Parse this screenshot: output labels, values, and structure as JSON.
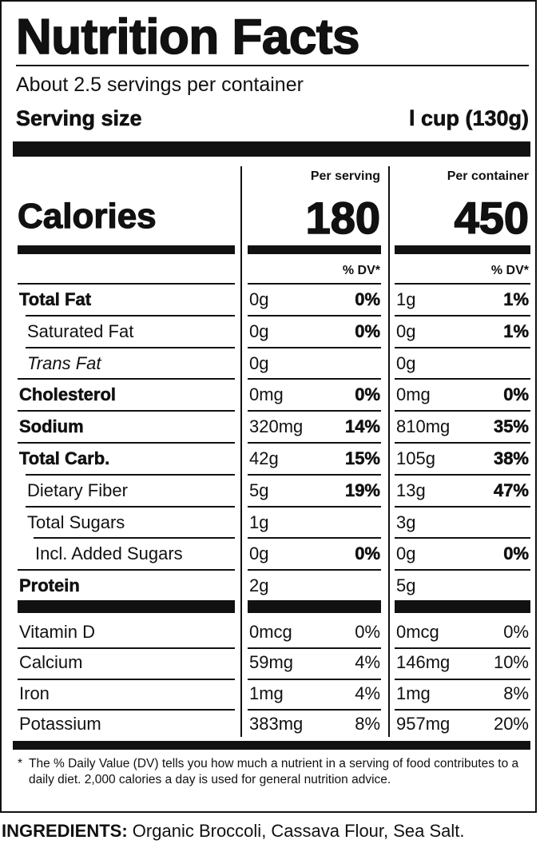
{
  "title": "Nutrition Facts",
  "servings_per_container": "About 2.5 servings per container",
  "serving_size_label": "Serving size",
  "serving_size_value": "l cup (130g)",
  "col_headers": {
    "per_serving": "Per serving",
    "per_container": "Per container"
  },
  "calories": {
    "label": "Calories",
    "per_serving": "180",
    "per_container": "450"
  },
  "dv_header": "% DV*",
  "nutrients": [
    {
      "name": "Total Fat",
      "style": "bold",
      "indent": 0,
      "serving_amount": "0g",
      "serving_dv": "0%",
      "container_amount": "1g",
      "container_dv": "1%"
    },
    {
      "name": "Saturated Fat",
      "style": "normal",
      "indent": 1,
      "serving_amount": "0g",
      "serving_dv": "0%",
      "container_amount": "0g",
      "container_dv": "1%"
    },
    {
      "name": "Trans Fat",
      "style": "italic",
      "indent": 1,
      "serving_amount": "0g",
      "serving_dv": "",
      "container_amount": "0g",
      "container_dv": ""
    },
    {
      "name": "Cholesterol",
      "style": "bold",
      "indent": 0,
      "serving_amount": "0mg",
      "serving_dv": "0%",
      "container_amount": "0mg",
      "container_dv": "0%"
    },
    {
      "name": "Sodium",
      "style": "bold",
      "indent": 0,
      "serving_amount": "320mg",
      "serving_dv": "14%",
      "container_amount": "810mg",
      "container_dv": "35%"
    },
    {
      "name": "Total Carb.",
      "style": "bold",
      "indent": 0,
      "serving_amount": "42g",
      "serving_dv": "15%",
      "container_amount": "105g",
      "container_dv": "38%"
    },
    {
      "name": "Dietary Fiber",
      "style": "normal",
      "indent": 1,
      "serving_amount": "5g",
      "serving_dv": "19%",
      "container_amount": "13g",
      "container_dv": "47%"
    },
    {
      "name": "Total Sugars",
      "style": "normal",
      "indent": 1,
      "serving_amount": "1g",
      "serving_dv": "",
      "container_amount": "3g",
      "container_dv": ""
    },
    {
      "name": "Incl. Added Sugars",
      "style": "normal",
      "indent": 2,
      "serving_amount": "0g",
      "serving_dv": "0%",
      "container_amount": "0g",
      "container_dv": "0%"
    },
    {
      "name": "Protein",
      "style": "bold",
      "indent": 0,
      "serving_amount": "2g",
      "serving_dv": "",
      "container_amount": "5g",
      "container_dv": ""
    }
  ],
  "vitamins": [
    {
      "name": "Vitamin D",
      "serving_amount": "0mcg",
      "serving_dv": "0%",
      "container_amount": "0mcg",
      "container_dv": "0%"
    },
    {
      "name": "Calcium",
      "serving_amount": "59mg",
      "serving_dv": "4%",
      "container_amount": "146mg",
      "container_dv": "10%"
    },
    {
      "name": "Iron",
      "serving_amount": "1mg",
      "serving_dv": "4%",
      "container_amount": "1mg",
      "container_dv": "8%"
    },
    {
      "name": "Potassium",
      "serving_amount": "383mg",
      "serving_dv": "8%",
      "container_amount": "957mg",
      "container_dv": "20%"
    }
  ],
  "footnote": {
    "star": "*",
    "text": "The % Daily Value (DV) tells you how much a nutrient in a serving of food contributes to a daily diet. 2,000 calories a day is used for general nutrition advice."
  },
  "ingredients": {
    "label": "INGREDIENTS:",
    "text": " Organic Broccoli, Cassava Flour, Sea Salt."
  }
}
